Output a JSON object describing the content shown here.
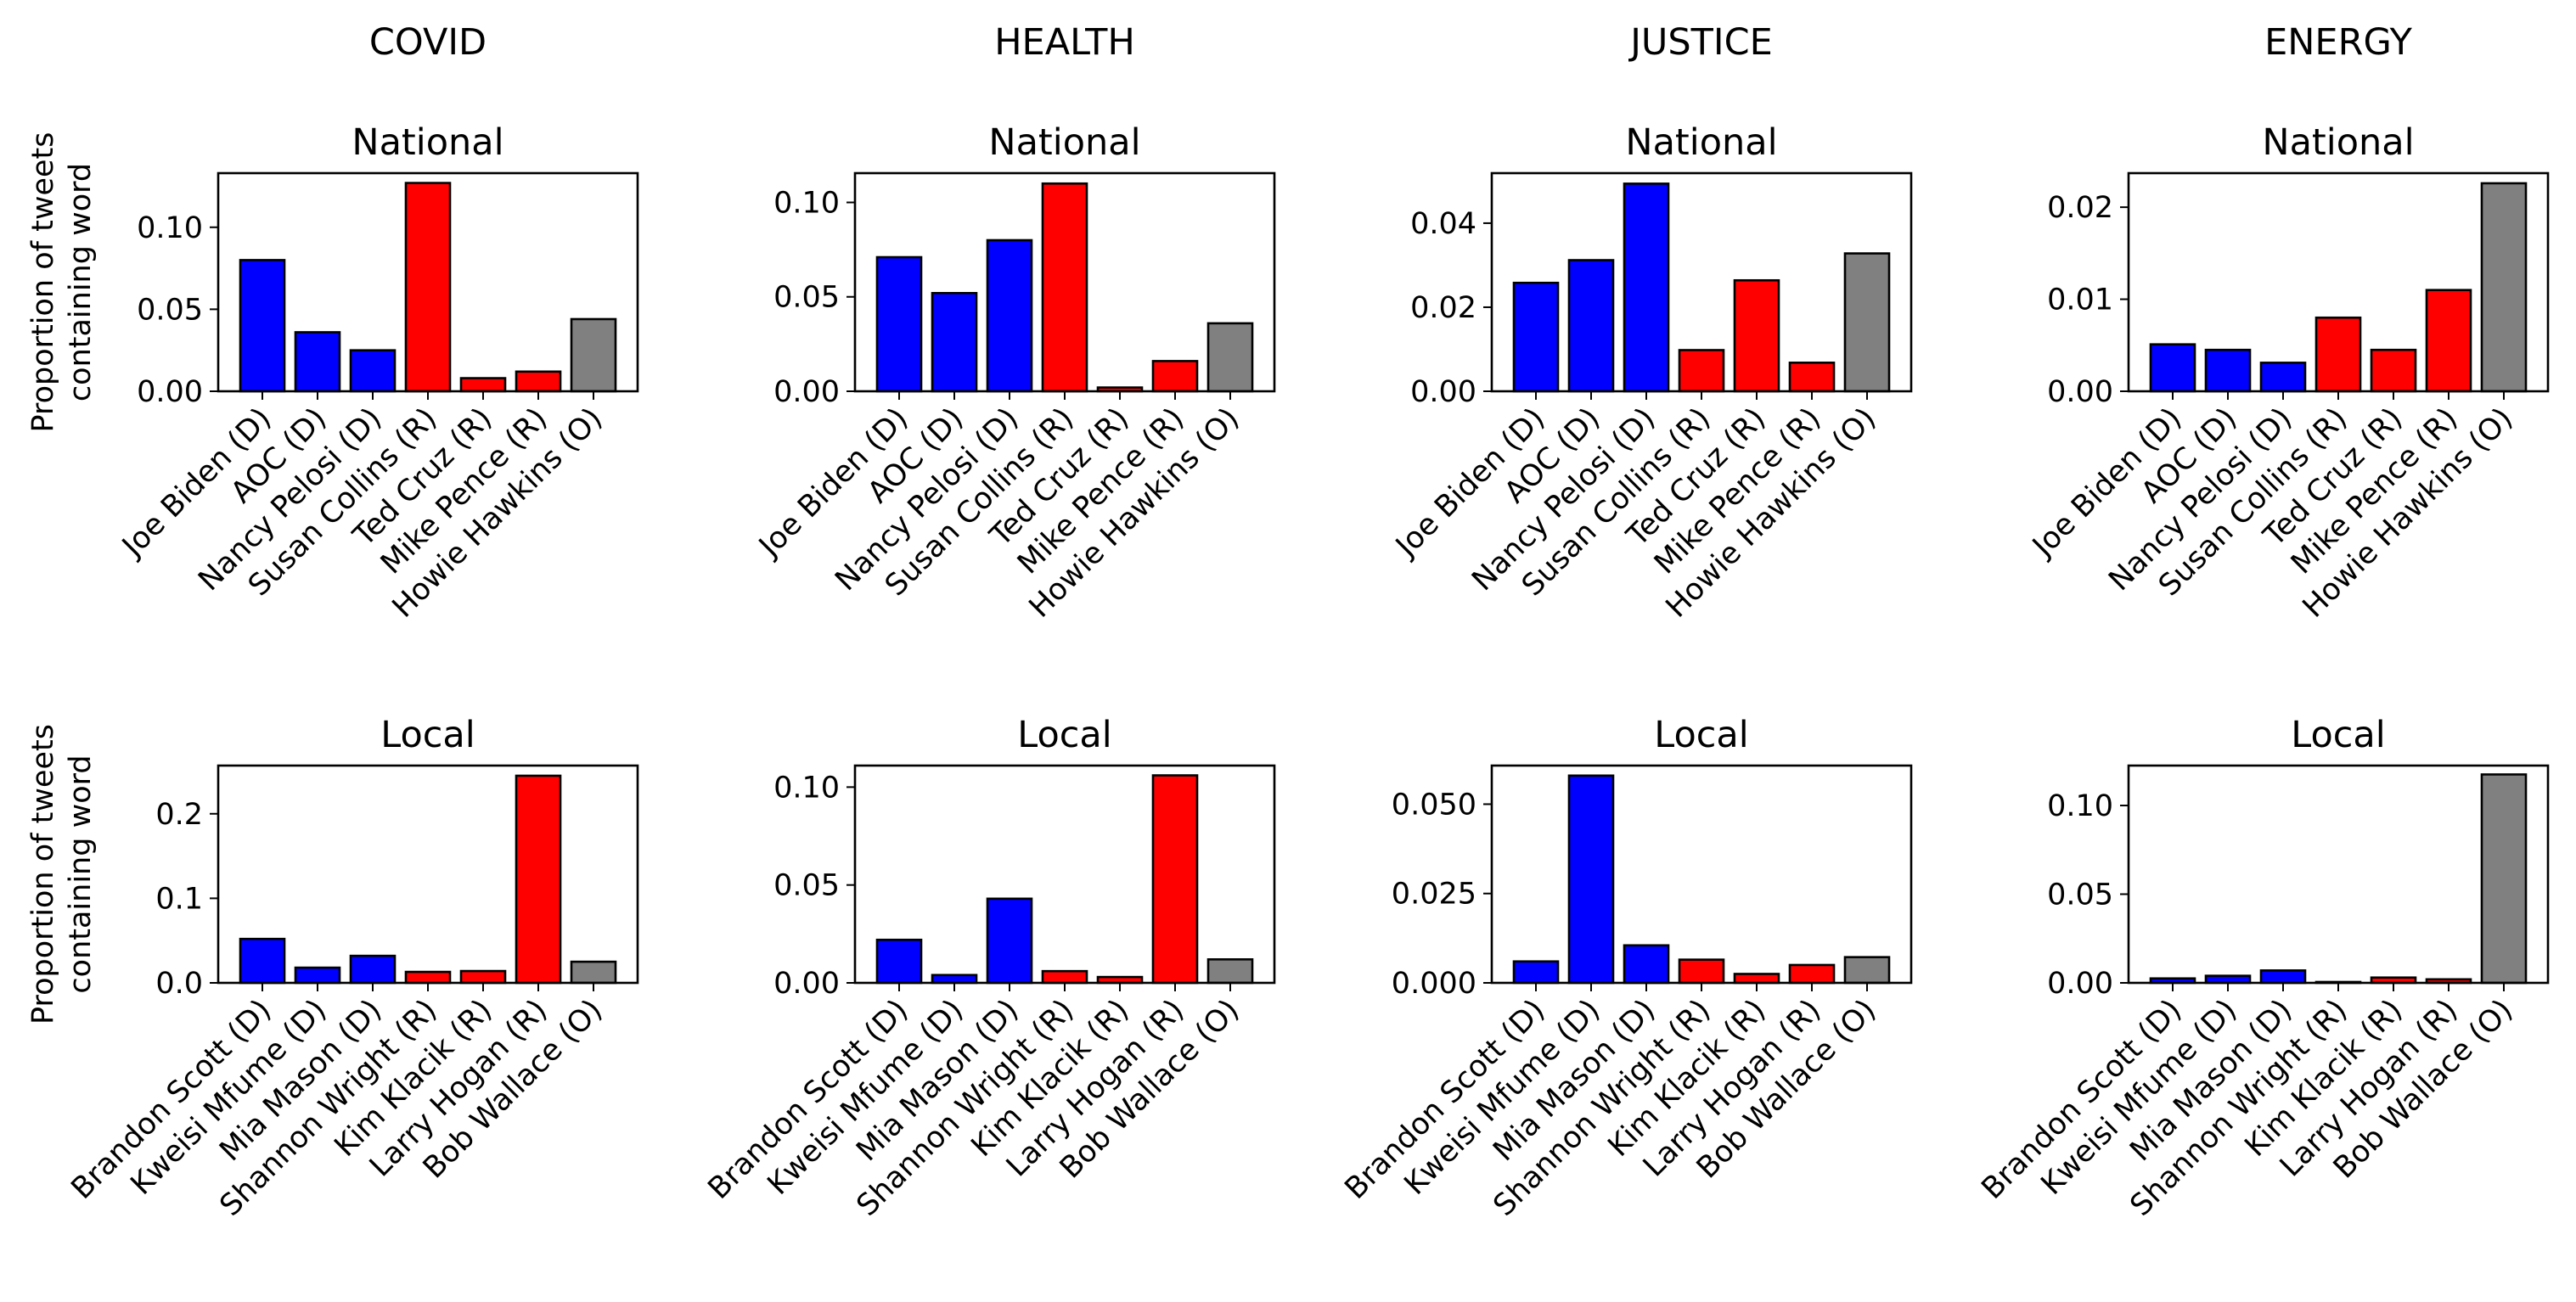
{
  "colors": {
    "D": "#0000ff",
    "R": "#ff0000",
    "O": "#808080"
  },
  "ylabel_lines": [
    "Proportion of tweets",
    "containing word"
  ],
  "rows": [
    {
      "key": "national",
      "title": "National",
      "categories": [
        "Joe Biden (D)",
        "AOC (D)",
        "Nancy Pelosi (D)",
        "Susan Collins (R)",
        "Ted Cruz (R)",
        "Mike Pence (R)",
        "Howie Hawkins (O)"
      ],
      "parties": [
        "D",
        "D",
        "D",
        "R",
        "R",
        "R",
        "O"
      ]
    },
    {
      "key": "local",
      "title": "Local",
      "categories": [
        "Brandon Scott (D)",
        "Kweisi Mfume (D)",
        "Mia Mason (D)",
        "Shannon Wright (R)",
        "Kim Klacik (R)",
        "Larry Hogan (R)",
        "Bob Wallace (O)"
      ],
      "parties": [
        "D",
        "D",
        "D",
        "R",
        "R",
        "R",
        "O"
      ]
    }
  ],
  "chart_data": [
    {
      "type": "bar",
      "topic": "COVID",
      "subtitle": "National",
      "ylabel": "Proportion of tweets containing word",
      "categories": [
        "Joe Biden (D)",
        "AOC (D)",
        "Nancy Pelosi (D)",
        "Susan Collins (R)",
        "Ted Cruz (R)",
        "Mike Pence (R)",
        "Howie Hawkins (O)"
      ],
      "values": [
        0.08,
        0.036,
        0.025,
        0.127,
        0.008,
        0.012,
        0.044
      ],
      "ylim": [
        0,
        0.133
      ],
      "yticks": [
        0.0,
        0.05,
        0.1
      ],
      "ytick_labels": [
        "0.00",
        "0.05",
        "0.10"
      ]
    },
    {
      "type": "bar",
      "topic": "HEALTH",
      "subtitle": "National",
      "ylabel": "",
      "categories": [
        "Joe Biden (D)",
        "AOC (D)",
        "Nancy Pelosi (D)",
        "Susan Collins (R)",
        "Ted Cruz (R)",
        "Mike Pence (R)",
        "Howie Hawkins (O)"
      ],
      "values": [
        0.071,
        0.052,
        0.08,
        0.11,
        0.002,
        0.016,
        0.036
      ],
      "ylim": [
        0,
        0.1155
      ],
      "yticks": [
        0.0,
        0.05,
        0.1
      ],
      "ytick_labels": [
        "0.00",
        "0.05",
        "0.10"
      ]
    },
    {
      "type": "bar",
      "topic": "JUSTICE",
      "subtitle": "National",
      "ylabel": "",
      "categories": [
        "Joe Biden (D)",
        "AOC (D)",
        "Nancy Pelosi (D)",
        "Susan Collins (R)",
        "Ted Cruz (R)",
        "Mike Pence (R)",
        "Howie Hawkins (O)"
      ],
      "values": [
        0.0258,
        0.0312,
        0.0494,
        0.0098,
        0.0264,
        0.0068,
        0.0328
      ],
      "ylim": [
        0,
        0.0519
      ],
      "yticks": [
        0.0,
        0.02,
        0.04
      ],
      "ytick_labels": [
        "0.00",
        "0.02",
        "0.04"
      ]
    },
    {
      "type": "bar",
      "topic": "ENERGY",
      "subtitle": "National",
      "ylabel": "",
      "categories": [
        "Joe Biden (D)",
        "AOC (D)",
        "Nancy Pelosi (D)",
        "Susan Collins (R)",
        "Ted Cruz (R)",
        "Mike Pence (R)",
        "Howie Hawkins (O)"
      ],
      "values": [
        0.0051,
        0.0045,
        0.0031,
        0.008,
        0.0045,
        0.011,
        0.0226
      ],
      "ylim": [
        0,
        0.0237
      ],
      "yticks": [
        0.0,
        0.01,
        0.02
      ],
      "ytick_labels": [
        "0.00",
        "0.01",
        "0.02"
      ]
    },
    {
      "type": "bar",
      "topic": "COVID",
      "subtitle": "Local",
      "ylabel": "Proportion of tweets containing word",
      "categories": [
        "Brandon Scott (D)",
        "Kweisi Mfume (D)",
        "Mia Mason (D)",
        "Shannon Wright (R)",
        "Kim Klacik (R)",
        "Larry Hogan (R)",
        "Bob Wallace (O)"
      ],
      "values": [
        0.052,
        0.018,
        0.032,
        0.013,
        0.014,
        0.245,
        0.025
      ],
      "ylim": [
        0,
        0.257
      ],
      "yticks": [
        0.0,
        0.1,
        0.2
      ],
      "ytick_labels": [
        "0.0",
        "0.1",
        "0.2"
      ]
    },
    {
      "type": "bar",
      "topic": "HEALTH",
      "subtitle": "Local",
      "ylabel": "",
      "categories": [
        "Brandon Scott (D)",
        "Kweisi Mfume (D)",
        "Mia Mason (D)",
        "Shannon Wright (R)",
        "Kim Klacik (R)",
        "Larry Hogan (R)",
        "Bob Wallace (O)"
      ],
      "values": [
        0.022,
        0.004,
        0.043,
        0.006,
        0.003,
        0.106,
        0.012
      ],
      "ylim": [
        0,
        0.111
      ],
      "yticks": [
        0.0,
        0.05,
        0.1
      ],
      "ytick_labels": [
        "0.00",
        "0.05",
        "0.10"
      ]
    },
    {
      "type": "bar",
      "topic": "JUSTICE",
      "subtitle": "Local",
      "ylabel": "",
      "categories": [
        "Brandon Scott (D)",
        "Kweisi Mfume (D)",
        "Mia Mason (D)",
        "Shannon Wright (R)",
        "Kim Klacik (R)",
        "Larry Hogan (R)",
        "Bob Wallace (O)"
      ],
      "values": [
        0.006,
        0.058,
        0.0105,
        0.0065,
        0.0025,
        0.005,
        0.0072
      ],
      "ylim": [
        0,
        0.0608
      ],
      "yticks": [
        0.0,
        0.025,
        0.05
      ],
      "ytick_labels": [
        "0.000",
        "0.025",
        "0.050"
      ]
    },
    {
      "type": "bar",
      "topic": "ENERGY",
      "subtitle": "Local",
      "ylabel": "",
      "categories": [
        "Brandon Scott (D)",
        "Kweisi Mfume (D)",
        "Mia Mason (D)",
        "Shannon Wright (R)",
        "Kim Klacik (R)",
        "Larry Hogan (R)",
        "Bob Wallace (O)"
      ],
      "values": [
        0.0025,
        0.004,
        0.007,
        0.0005,
        0.003,
        0.002,
        0.1175
      ],
      "ylim": [
        0,
        0.1225
      ],
      "yticks": [
        0.0,
        0.05,
        0.1
      ],
      "ytick_labels": [
        "0.00",
        "0.05",
        "0.10"
      ]
    }
  ]
}
